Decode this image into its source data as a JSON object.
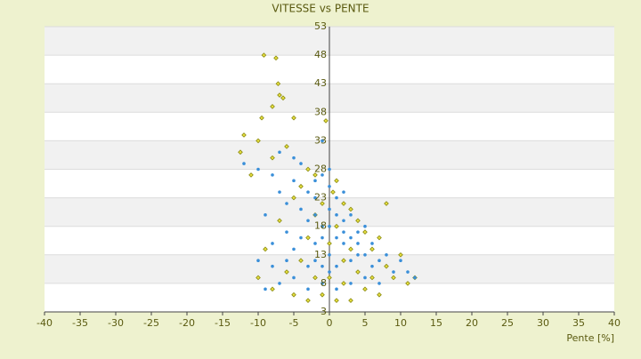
{
  "chart_data": {
    "type": "scatter",
    "title": "VITESSE vs PENTE",
    "x_label": "Pente [%]",
    "xlim": [
      -40,
      40
    ],
    "xticks": [
      -40,
      -35,
      -30,
      -25,
      -20,
      -15,
      -10,
      -5,
      0,
      5,
      10,
      15,
      20,
      25,
      30,
      35,
      40
    ],
    "ylim": [
      3,
      53
    ],
    "yticks": [
      3,
      8,
      13,
      18,
      23,
      28,
      33,
      38,
      43,
      48,
      53
    ],
    "grid": true,
    "series": [
      {
        "color": "#8a8a10",
        "x": [
          -9.2,
          -7.5,
          -7.2,
          -7,
          -6.5,
          -8,
          -9.5,
          -5,
          -0.5,
          -12,
          -10,
          -12.5,
          -8,
          -6,
          -3,
          -4,
          -2,
          0.5,
          1,
          2,
          3,
          4,
          5,
          7,
          8,
          10,
          12,
          11,
          9,
          7,
          5,
          3,
          1,
          -1,
          -3,
          -5,
          -8,
          -10,
          -9,
          -7,
          -5,
          -2,
          0,
          2,
          4,
          6,
          -4,
          -6,
          1,
          -1,
          3,
          -2,
          0,
          8,
          6,
          -11,
          -3,
          2
        ],
        "values": [
          48,
          47.5,
          43,
          41,
          40.5,
          39,
          37,
          37,
          36.5,
          34,
          33,
          31,
          30,
          32,
          28,
          25,
          27,
          24,
          26,
          22,
          21,
          19,
          17,
          16,
          22,
          13,
          9,
          8,
          9,
          6,
          7,
          5,
          5,
          6,
          5,
          6,
          7,
          9,
          14,
          19,
          23,
          20,
          15,
          12,
          10,
          14,
          12,
          10,
          18,
          22,
          14,
          9,
          9,
          11,
          9,
          27,
          16,
          8
        ]
      },
      {
        "color": "#3a8fd9",
        "x": [
          -12,
          -10,
          -8,
          -7,
          -5,
          -4,
          -1,
          -3,
          -6,
          -9,
          -8,
          -10,
          -9,
          -7,
          -5,
          -3,
          -1,
          1,
          3,
          5,
          7,
          9,
          11,
          12,
          10,
          8,
          6,
          4,
          2,
          0,
          -2,
          -1,
          1,
          0,
          -2,
          3,
          2,
          -3,
          -4,
          -5,
          -6,
          -7,
          0,
          1,
          2,
          3,
          4,
          5,
          6,
          -1,
          -3,
          1,
          0,
          -1,
          2,
          -2,
          1,
          3,
          -4,
          -6,
          4,
          -1,
          0,
          -2,
          5,
          7,
          -8,
          -5,
          0,
          -2
        ],
        "values": [
          29,
          28,
          27,
          31,
          30,
          29,
          33,
          24,
          22,
          20,
          15,
          12,
          7,
          8,
          9,
          7,
          8,
          7,
          8,
          9,
          8,
          10,
          10,
          9,
          12,
          13,
          15,
          17,
          19,
          21,
          23,
          18,
          16,
          13,
          15,
          12,
          15,
          19,
          16,
          14,
          17,
          24,
          25,
          23,
          24,
          20,
          15,
          13,
          11,
          11,
          11,
          11,
          18,
          16,
          17,
          20,
          20,
          16,
          21,
          12,
          13,
          27,
          28,
          26,
          18,
          12,
          11,
          26,
          10,
          12
        ]
      }
    ]
  }
}
